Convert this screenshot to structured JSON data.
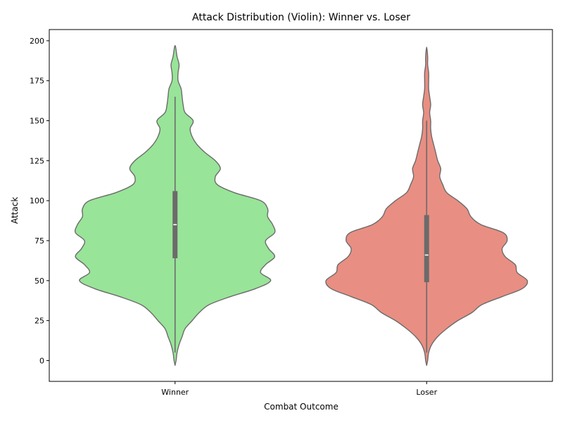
{
  "chart_data": {
    "type": "violin",
    "title": "Attack Distribution (Violin): Winner vs. Loser",
    "xlabel": "Combat Outcome",
    "ylabel": "Attack",
    "categories": [
      "Winner",
      "Loser"
    ],
    "ylim": [
      -13,
      207
    ],
    "yticks": [
      0,
      25,
      50,
      75,
      100,
      125,
      150,
      175,
      200
    ],
    "grid": false,
    "violins": [
      {
        "category": "Winner",
        "color": "#98e498",
        "stats": {
          "median": 85,
          "q1": 64,
          "q3": 106,
          "whisker_low": 5,
          "whisker_high": 165
        },
        "density": [
          [
            -3,
            0
          ],
          [
            0,
            0.01
          ],
          [
            5,
            0.02
          ],
          [
            10,
            0.04
          ],
          [
            15,
            0.07
          ],
          [
            20,
            0.1
          ],
          [
            25,
            0.17
          ],
          [
            30,
            0.24
          ],
          [
            35,
            0.34
          ],
          [
            40,
            0.55
          ],
          [
            45,
            0.8
          ],
          [
            50,
            0.95
          ],
          [
            55,
            0.85
          ],
          [
            60,
            0.9
          ],
          [
            65,
            0.99
          ],
          [
            70,
            0.93
          ],
          [
            75,
            0.9
          ],
          [
            80,
            0.99
          ],
          [
            85,
            0.97
          ],
          [
            90,
            0.92
          ],
          [
            95,
            0.92
          ],
          [
            100,
            0.85
          ],
          [
            105,
            0.59
          ],
          [
            110,
            0.42
          ],
          [
            115,
            0.4
          ],
          [
            120,
            0.45
          ],
          [
            125,
            0.4
          ],
          [
            130,
            0.3
          ],
          [
            135,
            0.22
          ],
          [
            140,
            0.17
          ],
          [
            145,
            0.15
          ],
          [
            150,
            0.18
          ],
          [
            155,
            0.1
          ],
          [
            160,
            0.08
          ],
          [
            165,
            0.07
          ],
          [
            170,
            0.06
          ],
          [
            175,
            0.03
          ],
          [
            180,
            0.03
          ],
          [
            185,
            0.04
          ],
          [
            190,
            0.02
          ],
          [
            197,
            0
          ]
        ]
      },
      {
        "category": "Loser",
        "color": "#e98e82",
        "stats": {
          "median": 66,
          "q1": 49,
          "q3": 91,
          "whisker_low": 5,
          "whisker_high": 150
        },
        "density": [
          [
            -3,
            0
          ],
          [
            0,
            0.01
          ],
          [
            5,
            0.02
          ],
          [
            10,
            0.05
          ],
          [
            15,
            0.11
          ],
          [
            20,
            0.2
          ],
          [
            25,
            0.31
          ],
          [
            30,
            0.45
          ],
          [
            35,
            0.55
          ],
          [
            40,
            0.75
          ],
          [
            45,
            0.95
          ],
          [
            50,
            1.0
          ],
          [
            55,
            0.9
          ],
          [
            60,
            0.88
          ],
          [
            65,
            0.78
          ],
          [
            70,
            0.75
          ],
          [
            75,
            0.8
          ],
          [
            80,
            0.76
          ],
          [
            85,
            0.54
          ],
          [
            90,
            0.44
          ],
          [
            95,
            0.4
          ],
          [
            100,
            0.31
          ],
          [
            105,
            0.2
          ],
          [
            110,
            0.16
          ],
          [
            115,
            0.13
          ],
          [
            120,
            0.14
          ],
          [
            125,
            0.11
          ],
          [
            130,
            0.09
          ],
          [
            135,
            0.07
          ],
          [
            140,
            0.05
          ],
          [
            145,
            0.04
          ],
          [
            150,
            0.04
          ],
          [
            155,
            0.03
          ],
          [
            160,
            0.04
          ],
          [
            165,
            0.03
          ],
          [
            170,
            0.02
          ],
          [
            175,
            0.02
          ],
          [
            180,
            0.02
          ],
          [
            185,
            0.01
          ],
          [
            190,
            0.01
          ],
          [
            196,
            0
          ]
        ]
      }
    ]
  }
}
